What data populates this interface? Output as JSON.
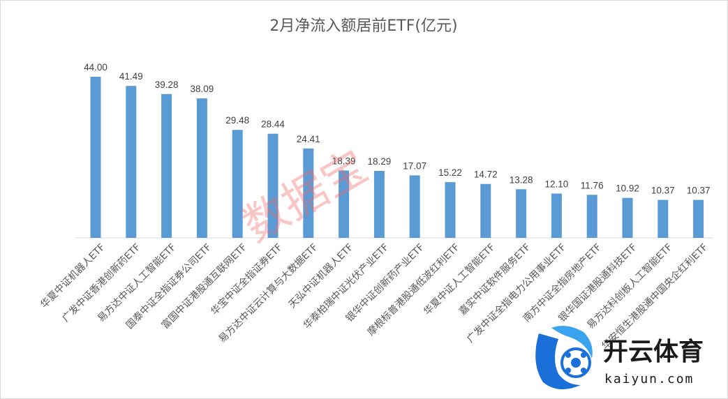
{
  "chart_data": {
    "type": "bar",
    "title": "2月净流入额居前ETF(亿元)",
    "categories": [
      "华夏中证机器人ETF",
      "广发中证香港创新药ETF",
      "易方达中证人工智能ETF",
      "国泰中证全指证券公司ETF",
      "富国中证港股通互联网ETF",
      "华宝中证全指证券ETF",
      "易方达中证云计算与大数据ETF",
      "天弘中证机器人ETF",
      "华泰柏瑞中证光伏产业ETF",
      "银华中证创新药产业ETF",
      "摩根标普港股通低波红利ETF",
      "华夏中证人工智能ETF",
      "嘉实中证软件服务ETF",
      "广发中证全指电力公用事业ETF",
      "南方中证全指房地产ETF",
      "银华国证港股通科技ETF",
      "易方达科创板人工智能ETF",
      "华安恒生港股通中国央企红利ETF"
    ],
    "values": [
      44.0,
      41.49,
      39.28,
      38.09,
      29.48,
      28.44,
      24.41,
      18.39,
      18.29,
      17.07,
      15.22,
      14.72,
      13.28,
      12.1,
      11.76,
      10.92,
      10.37,
      10.37
    ],
    "value_labels": [
      "44.00",
      "41.49",
      "39.28",
      "38.09",
      "29.48",
      "28.44",
      "24.41",
      "18.39",
      "18.29",
      "17.07",
      "15.22",
      "14.72",
      "13.28",
      "12.10",
      "11.76",
      "10.92",
      "10.37",
      "10.37"
    ],
    "bar_color": "#5b9bd5",
    "legend": "none",
    "grid": false
  },
  "watermark": {
    "text": "数据宝",
    "color": "#f06a6a"
  },
  "logo": {
    "text": "开云体育",
    "subtext": "kaiyun.com",
    "color": "#1a6fd8"
  }
}
